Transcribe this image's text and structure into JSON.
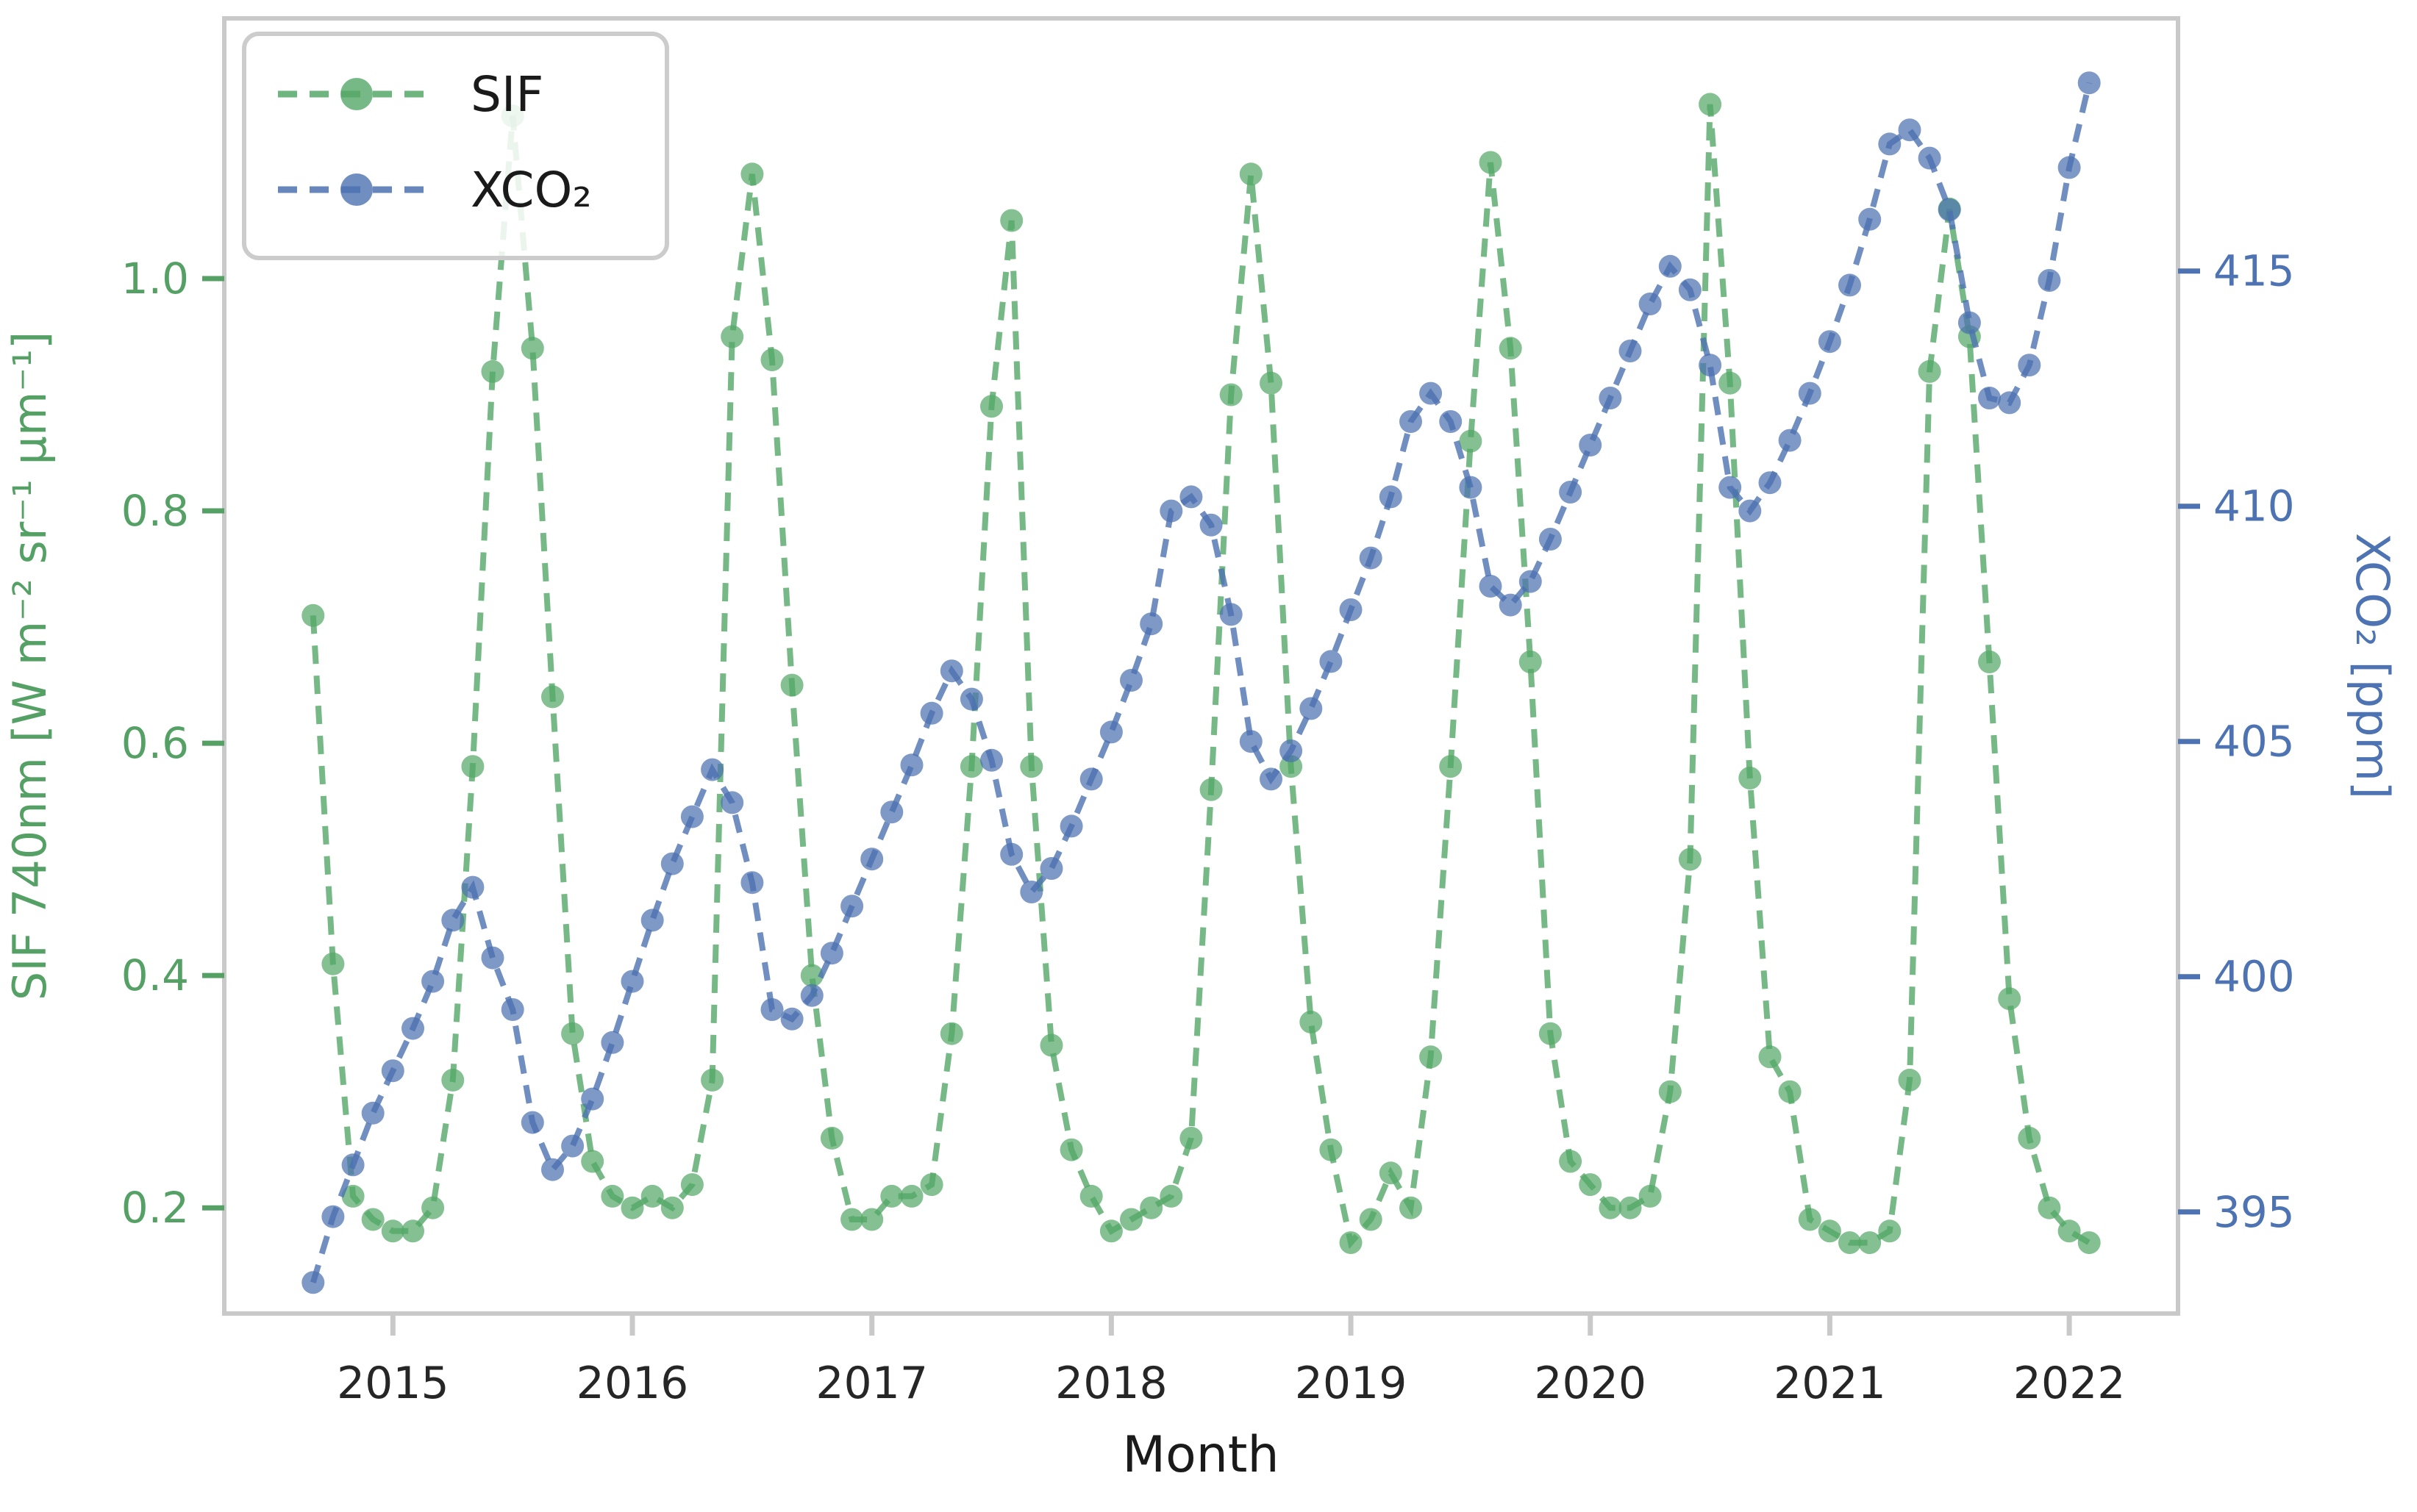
{
  "chart": {
    "xlabel": "Month",
    "left_axis": {
      "label": "SIF 740nm [W m⁻² sr⁻¹ µm⁻¹]",
      "tick_labels": [
        "0.2",
        "0.4",
        "0.6",
        "0.8",
        "1.0"
      ],
      "tick_values": [
        0.2,
        0.4,
        0.6,
        0.8,
        1.0
      ],
      "color": "#55a065"
    },
    "right_axis": {
      "label": "XCO₂ [ppm]",
      "tick_labels": [
        "395",
        "400",
        "405",
        "410",
        "415"
      ],
      "tick_values": [
        395,
        400,
        405,
        410,
        415
      ],
      "color": "#4d73b2"
    },
    "x_axis": {
      "tick_labels": [
        "2015",
        "2016",
        "2017",
        "2018",
        "2019",
        "2020",
        "2021",
        "2022"
      ],
      "tick_month_index": [
        4,
        16,
        28,
        40,
        52,
        64,
        76,
        88
      ],
      "color": "#262626"
    },
    "legend": {
      "items": [
        {
          "label": "SIF",
          "color": "#55a868"
        },
        {
          "label": "XCO₂",
          "color": "#4c72b0"
        }
      ]
    },
    "frame_color": "#c9c9c9"
  },
  "chart_data": {
    "type": "line",
    "title": "",
    "xlabel": "Month",
    "ylabel_left": "SIF 740nm [W m⁻² sr⁻¹ µm⁻¹]",
    "ylabel_right": "XCO₂ [ppm]",
    "ylim_left": [
      0.109,
      1.224
    ],
    "ylim_right": [
      392.84,
      420.37
    ],
    "grid": false,
    "legend_position": "upper left",
    "marker": "o",
    "linestyle": "--",
    "x": [
      "2014-09",
      "2014-10",
      "2014-11",
      "2014-12",
      "2015-01",
      "2015-02",
      "2015-03",
      "2015-04",
      "2015-05",
      "2015-06",
      "2015-07",
      "2015-08",
      "2015-09",
      "2015-10",
      "2015-11",
      "2015-12",
      "2016-01",
      "2016-02",
      "2016-03",
      "2016-04",
      "2016-05",
      "2016-06",
      "2016-07",
      "2016-08",
      "2016-09",
      "2016-10",
      "2016-11",
      "2016-12",
      "2017-01",
      "2017-02",
      "2017-03",
      "2017-04",
      "2017-05",
      "2017-06",
      "2017-07",
      "2017-08",
      "2017-09",
      "2017-10",
      "2017-11",
      "2017-12",
      "2018-01",
      "2018-02",
      "2018-03",
      "2018-04",
      "2018-05",
      "2018-06",
      "2018-07",
      "2018-08",
      "2018-09",
      "2018-10",
      "2018-11",
      "2018-12",
      "2019-01",
      "2019-02",
      "2019-03",
      "2019-04",
      "2019-05",
      "2019-06",
      "2019-07",
      "2019-08",
      "2019-09",
      "2019-10",
      "2019-11",
      "2019-12",
      "2020-01",
      "2020-02",
      "2020-03",
      "2020-04",
      "2020-05",
      "2020-06",
      "2020-07",
      "2020-08",
      "2020-09",
      "2020-10",
      "2020-11",
      "2020-12",
      "2021-01",
      "2021-02",
      "2021-03",
      "2021-04",
      "2021-05",
      "2021-06",
      "2021-07",
      "2021-08",
      "2021-09",
      "2021-10",
      "2021-11",
      "2021-12",
      "2022-01",
      "2022-02"
    ],
    "series": [
      {
        "name": "SIF",
        "axis": "left",
        "color": "#55a868",
        "values": [
          0.71,
          0.41,
          0.21,
          0.19,
          0.18,
          0.18,
          0.2,
          0.31,
          0.58,
          0.92,
          1.14,
          0.94,
          0.64,
          0.35,
          0.24,
          0.21,
          0.2,
          0.21,
          0.2,
          0.22,
          0.31,
          0.95,
          1.09,
          0.93,
          0.65,
          0.4,
          0.26,
          0.19,
          0.19,
          0.21,
          0.21,
          0.22,
          0.35,
          0.58,
          0.89,
          1.05,
          0.58,
          0.34,
          0.25,
          0.21,
          0.18,
          0.19,
          0.2,
          0.21,
          0.26,
          0.56,
          0.9,
          1.09,
          0.91,
          0.58,
          0.36,
          0.25,
          0.17,
          0.19,
          0.23,
          0.2,
          0.33,
          0.58,
          0.86,
          1.1,
          0.94,
          0.67,
          0.35,
          0.24,
          0.22,
          0.2,
          0.2,
          0.21,
          0.3,
          0.5,
          1.15,
          0.91,
          0.57,
          0.33,
          0.3,
          0.19,
          0.18,
          0.17,
          0.17,
          0.18,
          0.31,
          0.92,
          1.06,
          0.95,
          0.67,
          0.38,
          0.26,
          0.2,
          0.18,
          0.17
        ]
      },
      {
        "name": "XCO₂",
        "axis": "right",
        "color": "#4c72b0",
        "values": [
          393.5,
          394.9,
          396.0,
          397.1,
          398.0,
          398.9,
          399.9,
          401.2,
          401.9,
          400.4,
          399.3,
          396.9,
          395.9,
          396.4,
          397.4,
          398.6,
          399.9,
          401.2,
          402.4,
          403.4,
          404.4,
          403.7,
          402.0,
          399.3,
          399.1,
          399.6,
          400.5,
          401.5,
          402.5,
          403.5,
          404.5,
          405.6,
          406.5,
          405.9,
          404.6,
          402.6,
          401.8,
          402.3,
          403.2,
          404.2,
          405.2,
          406.3,
          407.5,
          409.9,
          410.2,
          409.6,
          407.7,
          405.0,
          404.2,
          404.8,
          405.7,
          406.7,
          407.8,
          408.9,
          410.2,
          411.8,
          412.4,
          411.8,
          410.4,
          408.3,
          407.9,
          408.4,
          409.3,
          410.3,
          411.3,
          412.3,
          413.3,
          414.3,
          415.1,
          414.6,
          413.0,
          410.4,
          409.9,
          410.5,
          411.4,
          412.4,
          413.5,
          414.7,
          416.1,
          417.7,
          418.0,
          417.4,
          416.3,
          413.9,
          412.3,
          412.2,
          413.0,
          414.8,
          417.2,
          419.0
        ]
      }
    ]
  }
}
